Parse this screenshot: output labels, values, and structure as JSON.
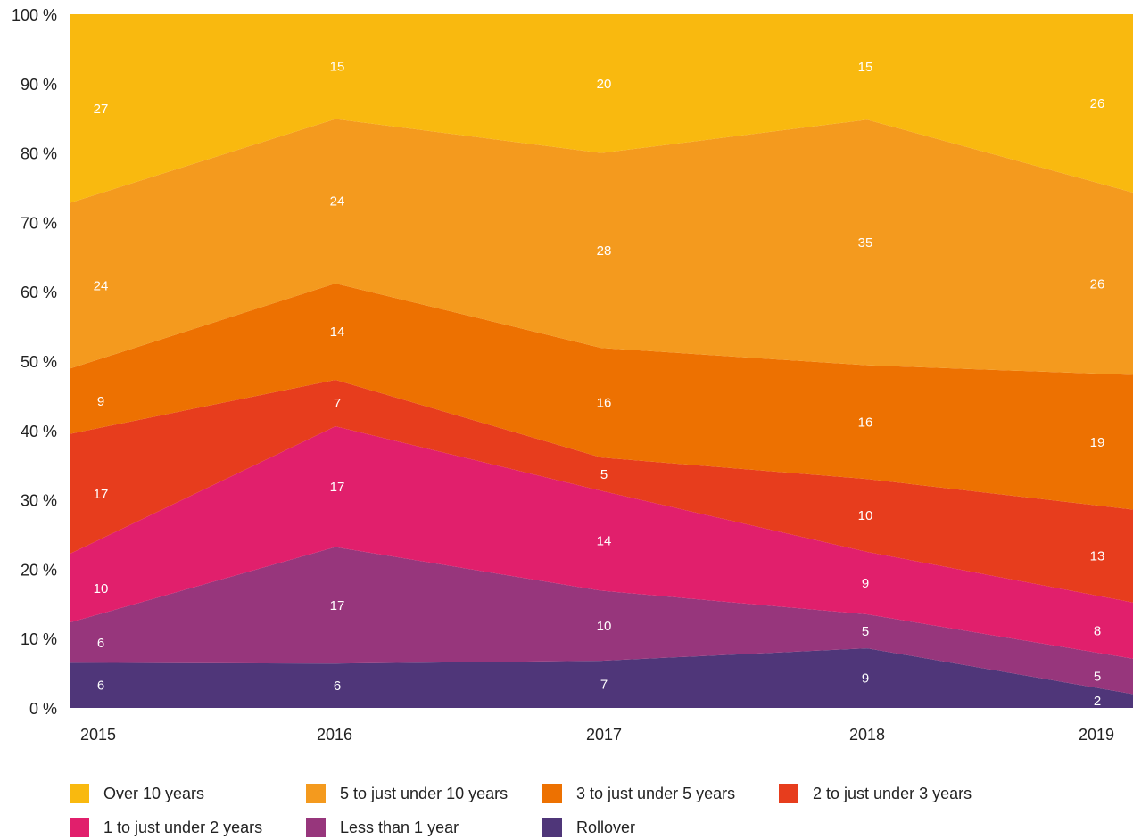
{
  "chart_data": {
    "type": "area",
    "stacked": true,
    "percent": true,
    "x": [
      "2015",
      "2016",
      "2017",
      "2018",
      "2019"
    ],
    "y_ticks": [
      "0 %",
      "10 %",
      "20 %",
      "30 %",
      "40 %",
      "50 %",
      "60 %",
      "70 %",
      "80 %",
      "90 %",
      "100 %"
    ],
    "ylim": [
      0,
      100
    ],
    "grid": false,
    "legend_position": "bottom",
    "series": [
      {
        "name": "Rollover",
        "color": "#4f3679",
        "values": [
          6.5,
          6.4,
          6.8,
          8.6,
          2.0
        ],
        "labels": [
          "6",
          "6",
          "7",
          "9",
          "2"
        ]
      },
      {
        "name": "Less than 1 year",
        "color": "#97367c",
        "values": [
          5.8,
          16.8,
          10.1,
          4.9,
          5.1
        ],
        "labels": [
          "6",
          "17",
          "10",
          "5",
          "5"
        ]
      },
      {
        "name": "1 to just under 2 years",
        "color": "#e11f6c",
        "values": [
          9.9,
          17.4,
          14.4,
          9.0,
          8.1
        ],
        "labels": [
          "10",
          "17",
          "14",
          "9",
          "8"
        ]
      },
      {
        "name": "2 to just under 3 years",
        "color": "#e73d1d",
        "values": [
          17.3,
          6.7,
          4.8,
          10.5,
          13.4
        ],
        "labels": [
          "17",
          "7",
          "5",
          "10",
          "13"
        ]
      },
      {
        "name": "3 to just under 5 years",
        "color": "#ed7101",
        "values": [
          9.4,
          13.9,
          15.8,
          16.4,
          19.4
        ],
        "labels": [
          "9",
          "14",
          "16",
          "16",
          "19"
        ]
      },
      {
        "name": "5 to just under 10 years",
        "color": "#f49a1e",
        "values": [
          23.9,
          23.7,
          28.1,
          35.4,
          26.3
        ],
        "labels": [
          "24",
          "24",
          "28",
          "35",
          "26"
        ]
      },
      {
        "name": "Over 10 years",
        "color": "#f9b90f",
        "values": [
          27.2,
          15.1,
          20.0,
          15.2,
          25.7
        ],
        "labels": [
          "27",
          "15",
          "20",
          "15",
          "26"
        ]
      }
    ]
  },
  "legend": [
    {
      "label": "Over 10 years",
      "color": "#f9b90f"
    },
    {
      "label": "5 to just under 10 years",
      "color": "#f49a1e"
    },
    {
      "label": "3 to just under 5 years",
      "color": "#ed7101"
    },
    {
      "label": "2 to just under 3 years",
      "color": "#e73d1d"
    },
    {
      "label": "1 to just under 2 years",
      "color": "#e11f6c"
    },
    {
      "label": "Less than 1 year",
      "color": "#97367c"
    },
    {
      "label": "Rollover",
      "color": "#4f3679"
    }
  ]
}
